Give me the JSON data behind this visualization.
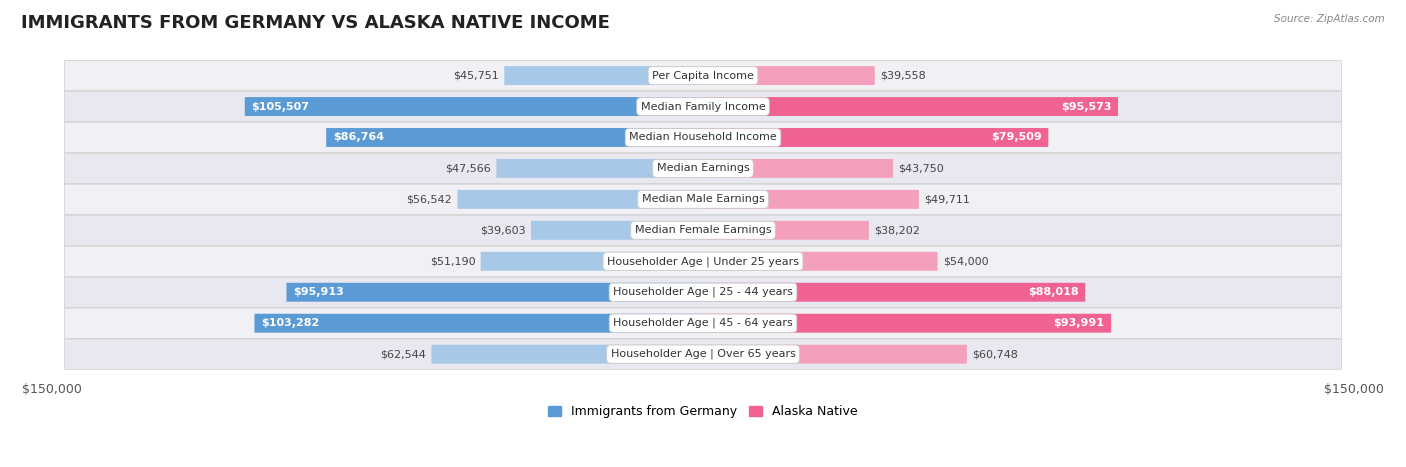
{
  "title": "IMMIGRANTS FROM GERMANY VS ALASKA NATIVE INCOME",
  "source": "Source: ZipAtlas.com",
  "categories": [
    "Per Capita Income",
    "Median Family Income",
    "Median Household Income",
    "Median Earnings",
    "Median Male Earnings",
    "Median Female Earnings",
    "Householder Age | Under 25 years",
    "Householder Age | 25 - 44 years",
    "Householder Age | 45 - 64 years",
    "Householder Age | Over 65 years"
  ],
  "germany_values": [
    45751,
    105507,
    86764,
    47566,
    56542,
    39603,
    51190,
    95913,
    103282,
    62544
  ],
  "alaska_values": [
    39558,
    95573,
    79509,
    43750,
    49711,
    38202,
    54000,
    88018,
    93991,
    60748
  ],
  "germany_color_light": "#a8c8e8",
  "germany_color_dark": "#5b9bd5",
  "alaska_color_light": "#f4a0bc",
  "alaska_color_dark": "#f06292",
  "germany_labels": [
    "$45,751",
    "$105,507",
    "$86,764",
    "$47,566",
    "$56,542",
    "$39,603",
    "$51,190",
    "$95,913",
    "$103,282",
    "$62,544"
  ],
  "alaska_labels": [
    "$39,558",
    "$95,573",
    "$79,509",
    "$43,750",
    "$49,711",
    "$38,202",
    "$54,000",
    "$88,018",
    "$93,991",
    "$60,748"
  ],
  "xlim": 150000,
  "bar_height": 0.6,
  "row_bg_even": "#f0f0f5",
  "row_bg_odd": "#e8e8f0",
  "background_color": "#ffffff",
  "title_fontsize": 13,
  "label_fontsize": 8,
  "category_fontsize": 8,
  "axis_label_fontsize": 9,
  "germany_inside_threshold": 70000,
  "alaska_inside_threshold": 70000
}
